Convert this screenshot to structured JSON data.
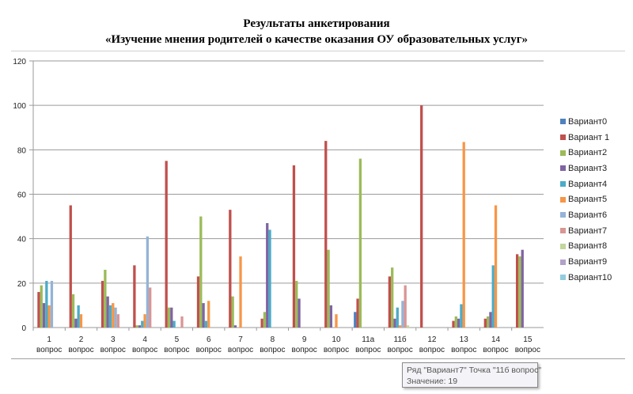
{
  "chart_data": {
    "type": "bar",
    "title": "Результаты  анкетирования",
    "subtitle": "«Изучение мнения родителей о качестве оказания ОУ образовательных услуг»",
    "xlabel": "",
    "ylabel": "",
    "ylim": [
      0,
      120
    ],
    "yticks": [
      0,
      20,
      40,
      60,
      80,
      100,
      120
    ],
    "grid": true,
    "legend": "right",
    "categories": [
      "1 вопрос",
      "2 вопрос",
      "3 вопрос",
      "4 вопрос",
      "5 вопрос",
      "6 вопрос",
      "7 вопрос",
      "8 вопрос",
      "9 вопрос",
      "10 вопрос",
      "11а вопрос",
      "11б вопрос",
      "12 вопрос",
      "13 вопрос",
      "14 вопрос",
      "15 вопрос"
    ],
    "series": [
      {
        "name": "Вариант0",
        "color": "#4F81BD",
        "values": [
          0,
          0,
          0,
          0,
          0,
          0,
          0,
          0,
          0,
          0,
          7,
          0,
          0,
          0,
          0,
          0
        ]
      },
      {
        "name": "Вариант 1",
        "color": "#C0504D",
        "values": [
          16,
          55,
          21,
          28,
          75,
          23,
          53,
          4,
          73,
          84,
          13,
          23,
          100,
          3,
          4,
          33
        ]
      },
      {
        "name": "Вариант2",
        "color": "#9BBB59",
        "values": [
          19,
          15,
          26,
          1,
          9,
          50,
          14,
          7,
          21,
          35,
          76,
          27,
          0,
          5,
          5,
          32
        ]
      },
      {
        "name": "Вариант3",
        "color": "#8064A2",
        "values": [
          11,
          4,
          14,
          1,
          9,
          11,
          1,
          47,
          13,
          10,
          0,
          4,
          0,
          4,
          7,
          35
        ]
      },
      {
        "name": "Вариант4",
        "color": "#4BACC6",
        "values": [
          21,
          10,
          10,
          3,
          3,
          3,
          0,
          44,
          0,
          0,
          0,
          9,
          0,
          10.5,
          28,
          0
        ]
      },
      {
        "name": "Вариант5",
        "color": "#F79646",
        "values": [
          10,
          6,
          11,
          6,
          0,
          12,
          32,
          0,
          0,
          6,
          0,
          1,
          0,
          83.5,
          55,
          0
        ]
      },
      {
        "name": "Вариант6",
        "color": "#95B3D7",
        "values": [
          21,
          0,
          9,
          41,
          0,
          0,
          0,
          0,
          0,
          0,
          0,
          12,
          0,
          0,
          0,
          0
        ]
      },
      {
        "name": "Вариант7",
        "color": "#D99694",
        "values": [
          0,
          0,
          6,
          18,
          5,
          0,
          0,
          0,
          0,
          0,
          0,
          19,
          0,
          0,
          0,
          0
        ]
      },
      {
        "name": "Вариант8",
        "color": "#C3D69B",
        "values": [
          0,
          0,
          0,
          0,
          0,
          0,
          0,
          0,
          0,
          0,
          0,
          1,
          0,
          0,
          0,
          0
        ]
      },
      {
        "name": "Вариант9",
        "color": "#B3A2C7",
        "values": [
          0,
          0,
          0,
          0,
          0,
          0,
          0,
          0,
          0,
          0,
          0,
          0,
          0,
          0,
          0,
          0
        ]
      },
      {
        "name": "Вариант10",
        "color": "#93CDDD",
        "values": [
          0,
          0,
          0,
          0,
          0,
          0,
          0,
          0,
          0,
          0,
          0,
          0,
          0,
          0,
          0,
          0
        ]
      }
    ]
  },
  "tooltip": {
    "line1": "Ряд \"Вариант7\" Точка \"11б вопрос\"",
    "line2": "Значение: 19"
  }
}
